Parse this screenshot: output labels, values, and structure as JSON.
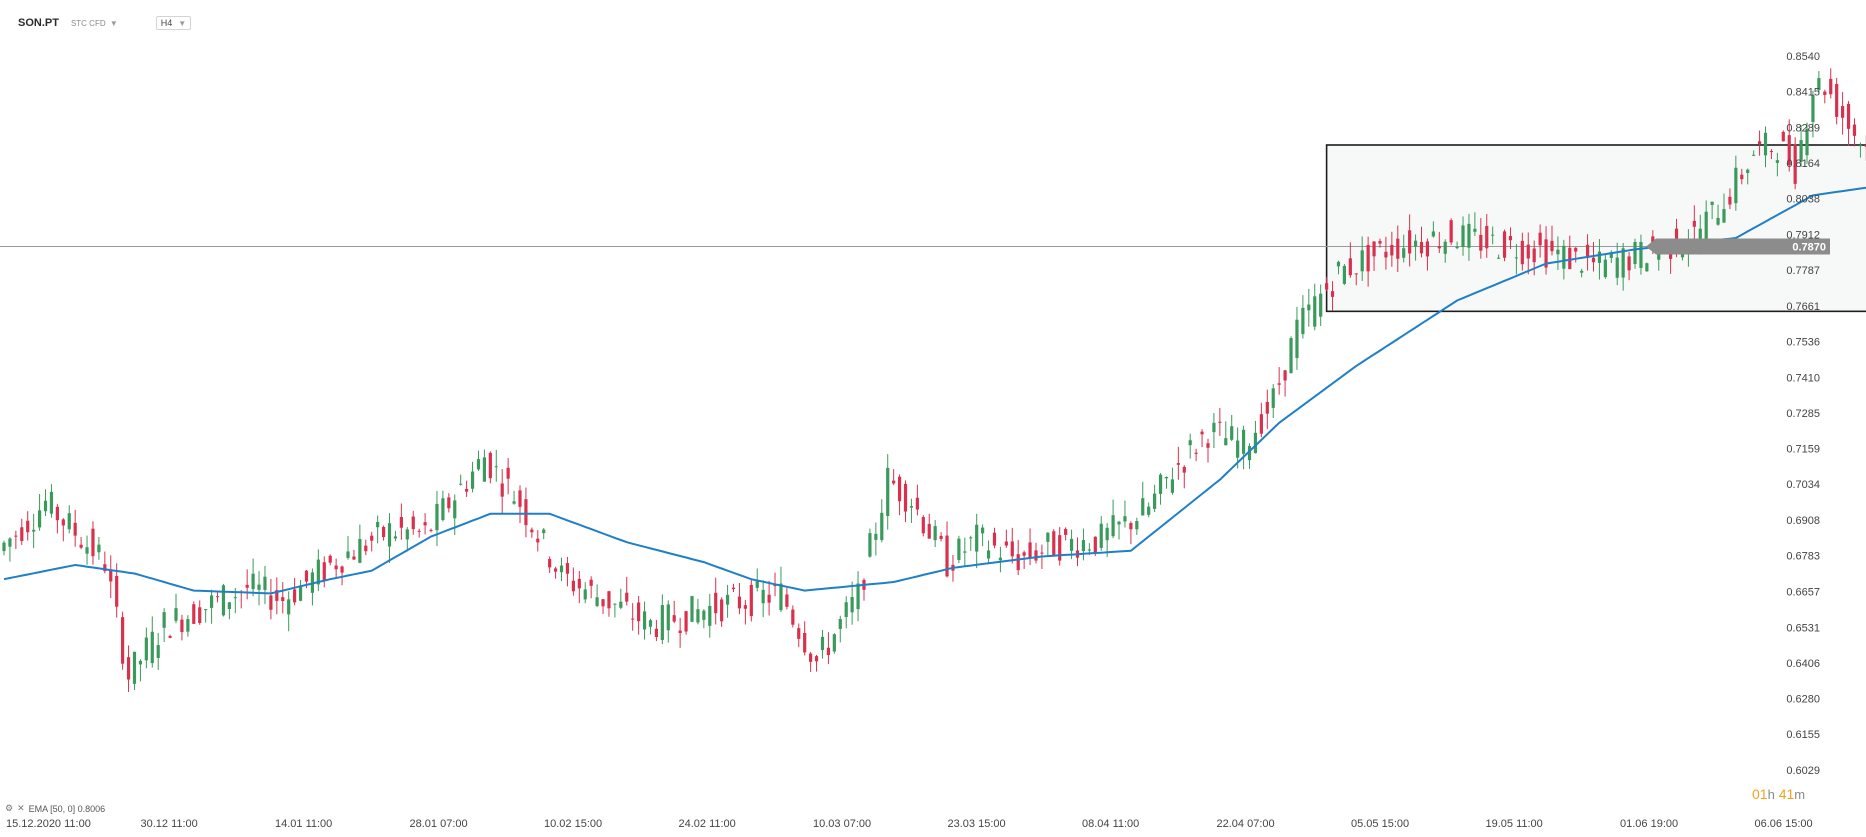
{
  "header": {
    "symbol": "SON.PT",
    "symbol_type": "STC CFD",
    "timeframe": "H4"
  },
  "legend": {
    "indicator": "EMA [50, 0] 0.8006"
  },
  "countdown": {
    "hours": "01",
    "h": "h",
    "minutes": "41",
    "m": "m"
  },
  "colors": {
    "up": "#3a9a5b",
    "down": "#d9304d",
    "ema": "#1f7fc7",
    "price_tag": "#8c8c8c",
    "box_fill": "#f7f9f8",
    "box_stroke": "#1c1c1c"
  },
  "chart_data": {
    "type": "candlestick",
    "ylim": [
      0.6029,
      0.854
    ],
    "y_ticks": [
      "0.8540",
      "0.8415",
      "0.8289",
      "0.8164",
      "0.8038",
      "0.7912",
      "0.7787",
      "0.7661",
      "0.7536",
      "0.7410",
      "0.7285",
      "0.7159",
      "0.7034",
      "0.6908",
      "0.6783",
      "0.6657",
      "0.6531",
      "0.6406",
      "0.6280",
      "0.6155",
      "0.6029"
    ],
    "x_labels": [
      "15.12.2020  11:00",
      "30.12  11:00",
      "14.01  11:00",
      "28.01  07:00",
      "10.02  15:00",
      "24.02  11:00",
      "10.03  07:00",
      "23.03  15:00",
      "08.04  11:00",
      "22.04  07:00",
      "05.05  15:00",
      "19.05  11:00",
      "01.06  19:00",
      "06.06  15:00"
    ],
    "current_price": "0.7870",
    "candle_count": 260,
    "price_path": [
      [
        0,
        0.68
      ],
      [
        8,
        0.697
      ],
      [
        18,
        0.676
      ],
      [
        22,
        0.636
      ],
      [
        28,
        0.654
      ],
      [
        42,
        0.667
      ],
      [
        48,
        0.663
      ],
      [
        58,
        0.678
      ],
      [
        66,
        0.687
      ],
      [
        72,
        0.686
      ],
      [
        82,
        0.713
      ],
      [
        88,
        0.697
      ],
      [
        95,
        0.671
      ],
      [
        110,
        0.654
      ],
      [
        122,
        0.661
      ],
      [
        132,
        0.665
      ],
      [
        138,
        0.641
      ],
      [
        145,
        0.664
      ],
      [
        150,
        0.705
      ],
      [
        154,
        0.698
      ],
      [
        160,
        0.676
      ],
      [
        165,
        0.684
      ],
      [
        172,
        0.677
      ],
      [
        178,
        0.682
      ],
      [
        186,
        0.684
      ],
      [
        194,
        0.695
      ],
      [
        198,
        0.708
      ],
      [
        204,
        0.722
      ],
      [
        210,
        0.717
      ],
      [
        215,
        0.733
      ],
      [
        219,
        0.758
      ],
      [
        226,
        0.778
      ],
      [
        235,
        0.787
      ],
      [
        245,
        0.791
      ],
      [
        252,
        0.788
      ],
      [
        260,
        0.786
      ],
      [
        270,
        0.78
      ],
      [
        280,
        0.786
      ],
      [
        286,
        0.791
      ],
      [
        292,
        0.806
      ],
      [
        296,
        0.82
      ],
      [
        300,
        0.823
      ],
      [
        303,
        0.815
      ],
      [
        306,
        0.843
      ],
      [
        308,
        0.844
      ],
      [
        312,
        0.83
      ],
      [
        316,
        0.819
      ],
      [
        320,
        0.768
      ],
      [
        326,
        0.781
      ],
      [
        333,
        0.799
      ],
      [
        339,
        0.797
      ],
      [
        344,
        0.812
      ],
      [
        350,
        0.818
      ],
      [
        355,
        0.8
      ],
      [
        362,
        0.803
      ],
      [
        368,
        0.795
      ],
      [
        372,
        0.786
      ],
      [
        376,
        0.789
      ]
    ],
    "ema": {
      "name": "EMA [50, 0]",
      "value": "0.8006",
      "path": [
        [
          0,
          0.67
        ],
        [
          12,
          0.675
        ],
        [
          22,
          0.672
        ],
        [
          32,
          0.666
        ],
        [
          45,
          0.665
        ],
        [
          55,
          0.67
        ],
        [
          62,
          0.673
        ],
        [
          72,
          0.685
        ],
        [
          82,
          0.693
        ],
        [
          92,
          0.693
        ],
        [
          105,
          0.683
        ],
        [
          118,
          0.676
        ],
        [
          126,
          0.67
        ],
        [
          135,
          0.666
        ],
        [
          150,
          0.669
        ],
        [
          160,
          0.674
        ],
        [
          175,
          0.678
        ],
        [
          190,
          0.68
        ],
        [
          205,
          0.705
        ],
        [
          215,
          0.725
        ],
        [
          228,
          0.745
        ],
        [
          245,
          0.768
        ],
        [
          260,
          0.781
        ],
        [
          275,
          0.786
        ],
        [
          292,
          0.79
        ],
        [
          305,
          0.805
        ],
        [
          315,
          0.808
        ],
        [
          322,
          0.803
        ],
        [
          333,
          0.8
        ],
        [
          345,
          0.806
        ],
        [
          360,
          0.803
        ],
        [
          378,
          0.8
        ]
      ]
    },
    "annotations": [
      {
        "type": "rectangle",
        "x_from": 223,
        "x_to": 385,
        "y_from": 0.7642,
        "y_to": 0.8227
      }
    ]
  }
}
